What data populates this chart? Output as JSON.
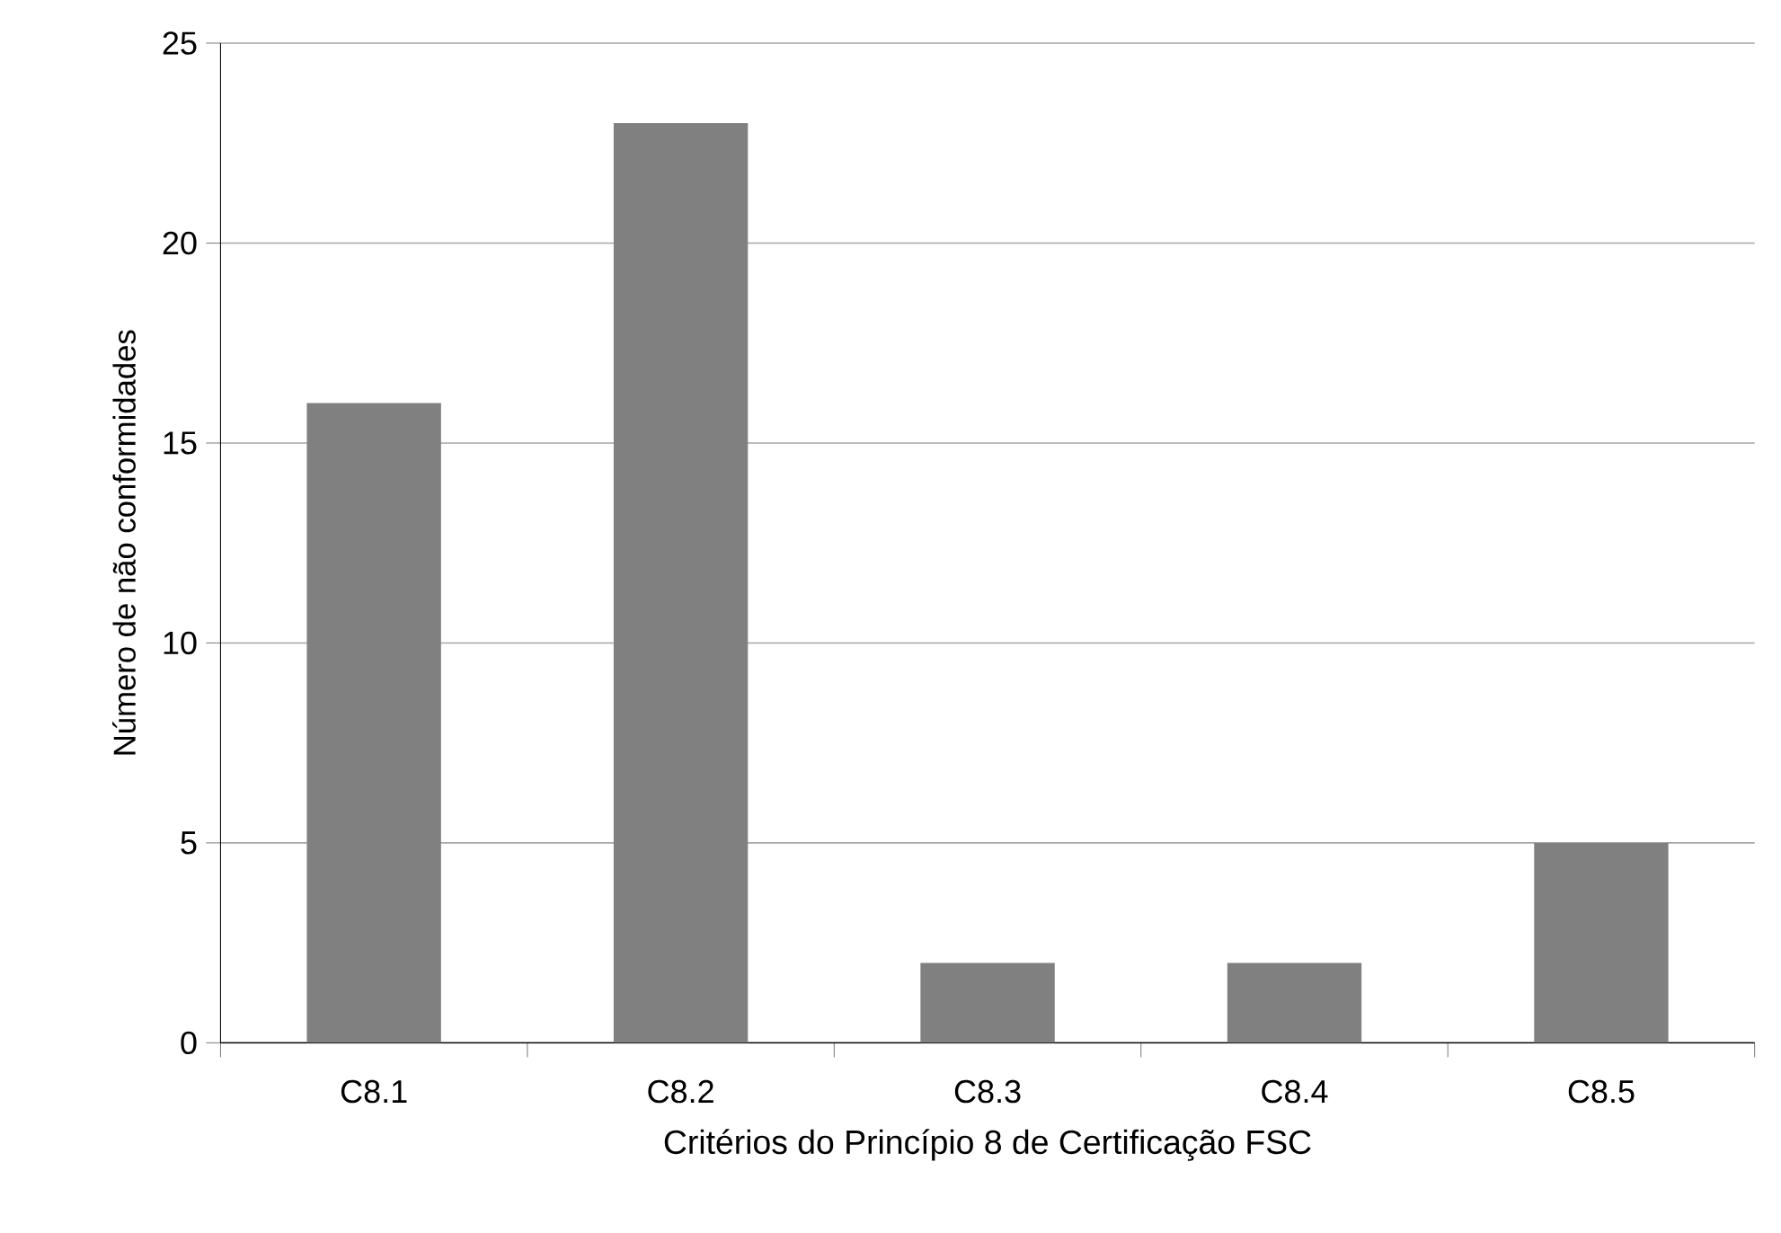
{
  "chart_data": {
    "type": "bar",
    "xlabel": "Critérios do Princípio 8 de Certificação FSC",
    "ylabel": "Número de não conformidades",
    "categories": [
      "C8.1",
      "C8.2",
      "C8.3",
      "C8.4",
      "C8.5"
    ],
    "values": [
      16,
      23,
      2,
      2,
      5
    ],
    "color": "#808080",
    "ylim": [
      0,
      25
    ],
    "yticks": [
      0,
      5,
      10,
      15,
      20,
      25
    ],
    "grid": "y"
  }
}
